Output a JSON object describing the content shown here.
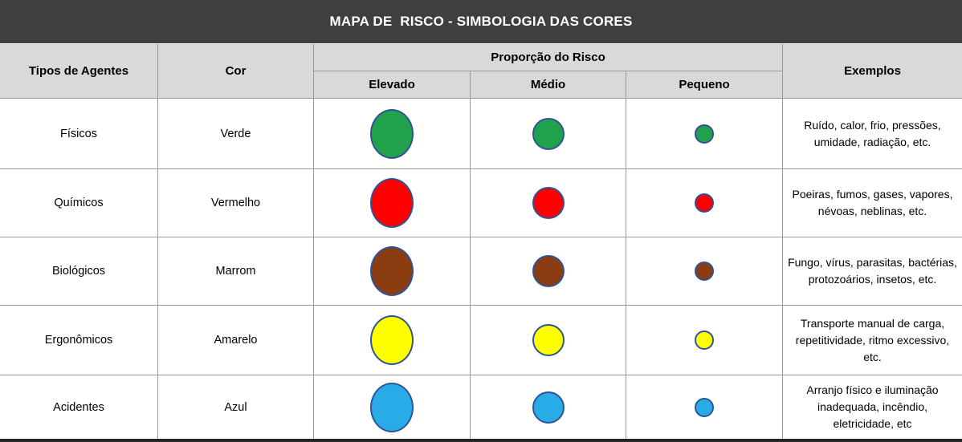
{
  "title": "MAPA DE  RISCO - SIMBOLOGIA DAS CORES",
  "header": {
    "col_agents": "Tipos de Agentes",
    "col_color": "Cor",
    "col_proportion": "Proporção do Risco",
    "sub_elevado": "Elevado",
    "sub_medio": "Médio",
    "sub_pequeno": "Pequeno",
    "col_examples": "Exemplos"
  },
  "colors": {
    "title_bg": "#3F3F3F",
    "header_bg": "#D9D9D9",
    "grid_line": "#999999",
    "circle_border": "#2E5496",
    "bottom_border": "#262626"
  },
  "rows": [
    {
      "agent": "Físicos",
      "color_name": "Verde",
      "circle_color": "#21A14B",
      "examples": "Ruído, calor, frio, pressões, umidade, radiação, etc."
    },
    {
      "agent": "Químicos",
      "color_name": "Vermelho",
      "circle_color": "#FF0000",
      "examples": "Poeiras, fumos, gases, vapores, névoas, neblinas, etc."
    },
    {
      "agent": "Biológicos",
      "color_name": "Marrom",
      "circle_color": "#8B3C10",
      "examples": "Fungo, vírus, parasitas, bactérias, protozoários, insetos, etc."
    },
    {
      "agent": "Ergonômicos",
      "color_name": "Amarelo",
      "circle_color": "#FFFF00",
      "examples": "Transporte manual de carga, repetitividade, ritmo excessivo, etc."
    },
    {
      "agent": "Acidentes",
      "color_name": "Azul",
      "circle_color": "#29ABE8",
      "examples": "Arranjo físico e iluminação inadequada, incêndio, eletricidade, etc"
    }
  ]
}
